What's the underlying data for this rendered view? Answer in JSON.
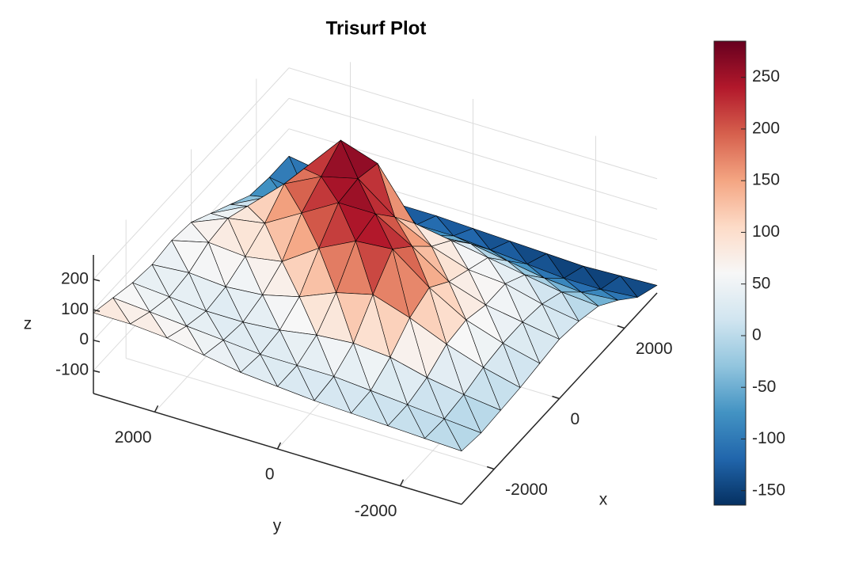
{
  "chart_data": {
    "type": "trisurf",
    "title": "Trisurf Plot",
    "x_label": "x",
    "y_label": "y",
    "z_label": "z",
    "x": [
      -3000,
      -2400,
      -1800,
      -1200,
      -600,
      0,
      600,
      1200,
      1800,
      2400,
      3000
    ],
    "y": [
      -3000,
      -2400,
      -1800,
      -1200,
      -600,
      0,
      600,
      1200,
      1800,
      2400,
      3000
    ],
    "z": [
      [
        0,
        -10,
        -5,
        0,
        10,
        20,
        10,
        -10,
        -60,
        -120,
        -150
      ],
      [
        5,
        0,
        10,
        30,
        40,
        40,
        30,
        0,
        -70,
        -130,
        -155
      ],
      [
        10,
        10,
        30,
        70,
        80,
        60,
        60,
        20,
        -60,
        -130,
        -160
      ],
      [
        15,
        20,
        60,
        120,
        150,
        100,
        70,
        40,
        -40,
        -120,
        -155
      ],
      [
        20,
        30,
        70,
        160,
        240,
        180,
        110,
        60,
        -20,
        -110,
        -150
      ],
      [
        30,
        30,
        60,
        130,
        230,
        250,
        170,
        80,
        -30,
        -100,
        -145
      ],
      [
        40,
        30,
        40,
        80,
        170,
        250,
        260,
        240,
        -20,
        -100,
        -140
      ],
      [
        60,
        40,
        30,
        50,
        90,
        180,
        230,
        280,
        -10,
        -110,
        -140
      ],
      [
        80,
        50,
        30,
        40,
        70,
        110,
        170,
        150,
        -30,
        -110,
        -130
      ],
      [
        90,
        60,
        40,
        50,
        80,
        90,
        60,
        20,
        -60,
        -110,
        -110
      ],
      [
        90,
        70,
        50,
        40,
        50,
        40,
        0,
        -40,
        -80,
        -90,
        -90
      ]
    ],
    "xlim": [
      -3000,
      3000
    ],
    "ylim": [
      -3000,
      3000
    ],
    "zlim": [
      -175,
      280
    ],
    "xticks": [
      -2000,
      0,
      2000
    ],
    "yticks": [
      -2000,
      0,
      2000
    ],
    "zticks": [
      -100,
      0,
      100,
      200
    ],
    "colormap": [
      "#053061",
      "#2166ac",
      "#4393c3",
      "#92c5de",
      "#d1e5f0",
      "#f7f7f7",
      "#fddbc7",
      "#f4a582",
      "#d6604d",
      "#b2182b",
      "#67001f"
    ],
    "clim": [
      -164,
      285
    ],
    "colorbar_ticks": [
      -150,
      -100,
      -50,
      0,
      50,
      100,
      150,
      200,
      250
    ],
    "grid": true,
    "edge_color": "#000000"
  }
}
